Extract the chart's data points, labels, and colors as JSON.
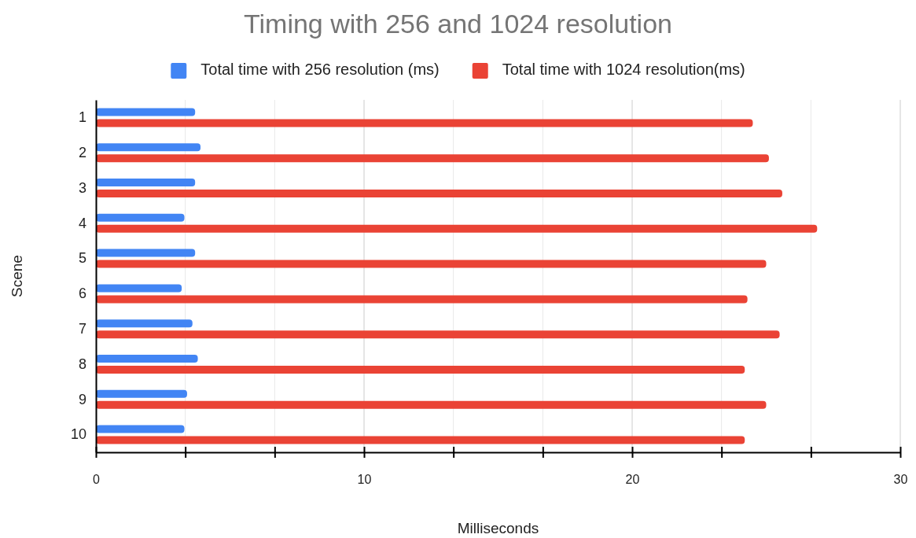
{
  "chart_data": {
    "type": "bar",
    "orientation": "horizontal",
    "title": "Timing with 256 and 1024 resolution",
    "xlabel": "Milliseconds",
    "ylabel": "Scene",
    "categories": [
      "1",
      "2",
      "3",
      "4",
      "5",
      "6",
      "7",
      "8",
      "9",
      "10"
    ],
    "series": [
      {
        "name": "Total time with 256 resolution (ms)",
        "color": "#4285f4",
        "values": [
          3.7,
          3.9,
          3.7,
          3.3,
          3.7,
          3.2,
          3.6,
          3.8,
          3.4,
          3.3
        ]
      },
      {
        "name": "Total time with 1024 resolution(ms)",
        "color": "#ea4335",
        "values": [
          24.5,
          25.1,
          25.6,
          26.9,
          25.0,
          24.3,
          25.5,
          24.2,
          25.0,
          24.2
        ]
      }
    ],
    "xlim": [
      0,
      30
    ],
    "xticks": [
      0,
      {
        "value": 3.333,
        "label": null
      },
      {
        "value": 6.667,
        "label": null
      },
      10,
      {
        "value": 13.333,
        "label": null
      },
      {
        "value": 16.667,
        "label": null
      },
      20,
      {
        "value": 23.333,
        "label": null
      },
      {
        "value": 26.667,
        "label": null
      },
      30
    ],
    "grid": "x",
    "legend": "top"
  }
}
